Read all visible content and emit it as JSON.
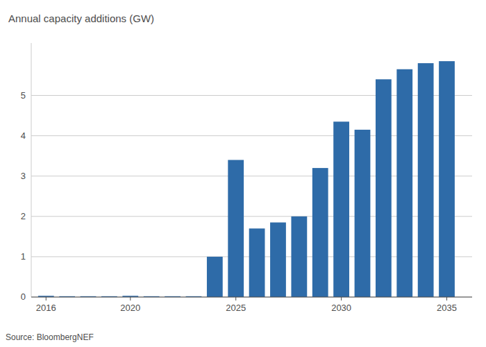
{
  "chart_data": {
    "type": "bar",
    "y_label": "Annual capacity additions (GW)",
    "source": "Source: BloombergNEF",
    "x": [
      2016,
      2017,
      2018,
      2019,
      2020,
      2021,
      2022,
      2023,
      2024,
      2025,
      2026,
      2027,
      2028,
      2029,
      2030,
      2031,
      2032,
      2033,
      2034,
      2035
    ],
    "values": [
      0.03,
      0.02,
      0.02,
      0.02,
      0.03,
      0.02,
      0.02,
      0.02,
      1.0,
      3.4,
      1.7,
      1.85,
      2.0,
      3.2,
      4.35,
      4.15,
      5.4,
      5.65,
      5.8,
      5.85
    ],
    "color": "#2E6BA8",
    "xlim": [
      2015.3,
      2036.2
    ],
    "xticks": [
      2016,
      2020,
      2025,
      2030,
      2035
    ],
    "ylim": [
      0,
      6.3
    ],
    "yticks": [
      0,
      1,
      2,
      3,
      4,
      5
    ],
    "grid": true
  }
}
